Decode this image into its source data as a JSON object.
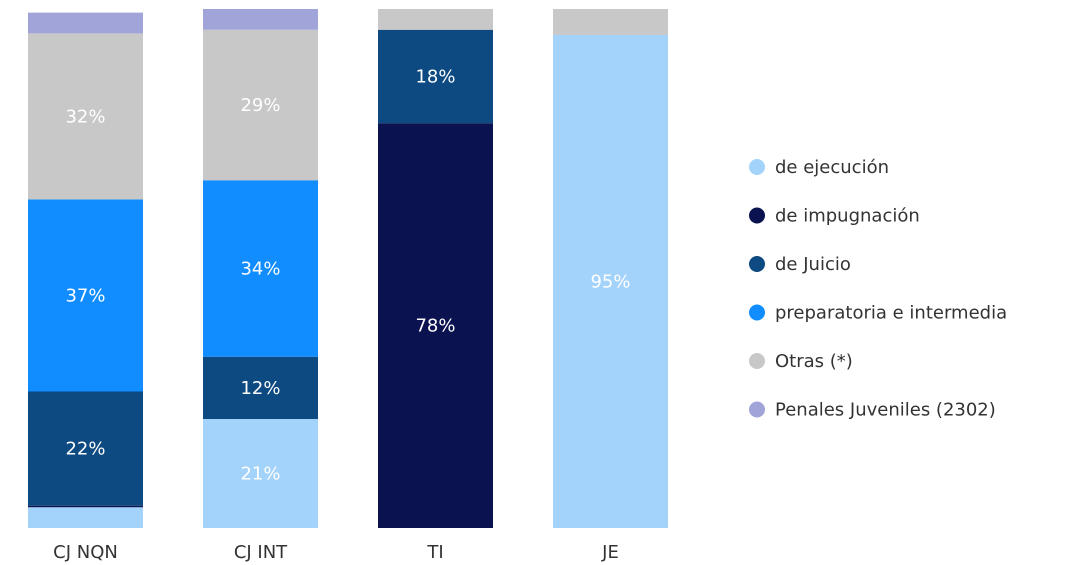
{
  "chart_data": {
    "type": "stacked_bar_100",
    "categories": [
      "CJ NQN",
      "CJ INT",
      "TI",
      "JE"
    ],
    "ylim": [
      0,
      100
    ],
    "series": [
      {
        "name": "de ejecución",
        "color": "#a3d2fb",
        "values": [
          4,
          21,
          0,
          95
        ],
        "value_labels": [
          null,
          "21%",
          null,
          "95%"
        ]
      },
      {
        "name": "de impugnación",
        "color": "#0a1350",
        "values": [
          0.3,
          0,
          78,
          0
        ],
        "value_labels": [
          null,
          null,
          "78%",
          null
        ]
      },
      {
        "name": "de Juicio",
        "color": "#0d4a82",
        "values": [
          22,
          12,
          18,
          0
        ],
        "value_labels": [
          "22%",
          "12%",
          "18%",
          null
        ]
      },
      {
        "name": "preparatoria e intermedia",
        "color": "#118dff",
        "values": [
          37,
          34,
          0,
          0
        ],
        "value_labels": [
          "37%",
          "34%",
          null,
          null
        ]
      },
      {
        "name": "Otras (*)",
        "color": "#c8c8c8",
        "values": [
          32,
          29,
          4,
          5
        ],
        "value_labels": [
          "32%",
          "29%",
          null,
          null
        ]
      },
      {
        "name": "Penales Juveniles (2302)",
        "color": "#a0a4d8",
        "values": [
          4,
          4,
          0,
          0
        ],
        "value_labels": [
          null,
          null,
          null,
          null
        ]
      }
    ]
  }
}
